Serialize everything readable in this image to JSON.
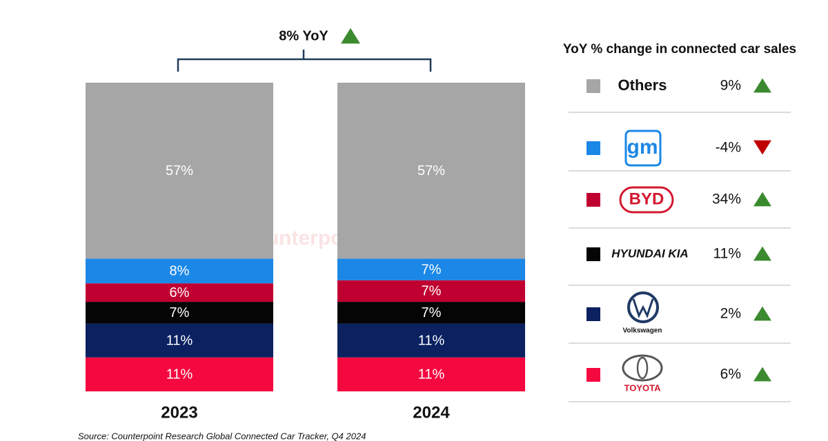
{
  "chart_data": {
    "type": "stacked-bar",
    "categories": [
      "2023",
      "2024"
    ],
    "ylim": [
      0,
      100
    ],
    "series": [
      {
        "name": "TOYOTA",
        "color": "#f5073f",
        "values": [
          11,
          11
        ],
        "value_labels": [
          "11%",
          "11%"
        ],
        "yoy": 6,
        "yoy_label": "6%"
      },
      {
        "name": "Volkswagen",
        "color": "#0b2160",
        "values": [
          11,
          11
        ],
        "value_labels": [
          "11%",
          "11%"
        ],
        "yoy": 2,
        "yoy_label": "2%"
      },
      {
        "name": "HYUNDAI KIA",
        "color": "#050505",
        "values": [
          7,
          7
        ],
        "value_labels": [
          "7%",
          "7%"
        ],
        "yoy": 11,
        "yoy_label": "11%"
      },
      {
        "name": "BYD",
        "color": "#c00031",
        "values": [
          6,
          7
        ],
        "value_labels": [
          "6%",
          "7%"
        ],
        "yoy": 34,
        "yoy_label": "34%"
      },
      {
        "name": "gm",
        "color": "#1b87e6",
        "values": [
          8,
          7
        ],
        "value_labels": [
          "8%",
          "7%"
        ],
        "yoy": -4,
        "yoy_label": "-4%"
      },
      {
        "name": "Others",
        "color": "#a6a6a6",
        "values": [
          57,
          57
        ],
        "value_labels": [
          "57%",
          "57%"
        ],
        "yoy": 9,
        "yoy_label": "9%"
      }
    ],
    "total_yoy": 8,
    "total_yoy_label": "8% YoY",
    "legend_title": "YoY % change in connected car sales",
    "watermark": "Counterpoint",
    "source": "Source: Counterpoint Research Global Connected Car Tracker, Q4 2024"
  }
}
